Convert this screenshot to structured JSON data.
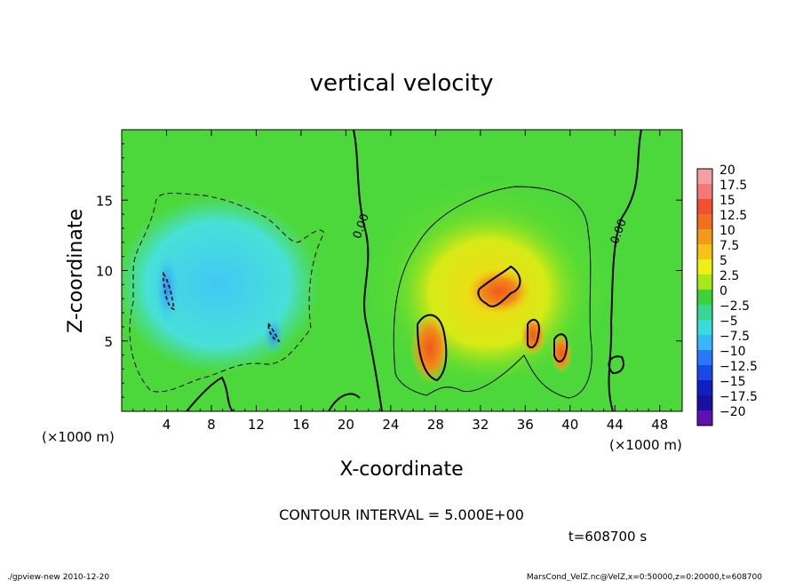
{
  "chart_data": {
    "type": "heatmap",
    "title": "vertical velocity",
    "xlabel": "X-coordinate",
    "ylabel": "Z-coordinate",
    "x_unit_left": "(×1000 m)",
    "x_unit_right": "(×1000 m)",
    "xlim": [
      0,
      50
    ],
    "ylim": [
      0,
      20
    ],
    "x_ticks": [
      4,
      8,
      12,
      16,
      20,
      24,
      28,
      32,
      36,
      40,
      44,
      48
    ],
    "y_ticks": [
      5,
      10,
      15
    ],
    "contour_interval_text": "CONTOUR INTERVAL = 5.000E+00",
    "time_text": "t=608700 s",
    "zero_contour_labels": [
      "0.00",
      "0.00"
    ],
    "colorbar": {
      "labels": [
        "20",
        "17.5",
        "15",
        "12.5",
        "10",
        "7.5",
        "5",
        "2.5",
        "0",
        "−2.5",
        "−5",
        "−7.5",
        "−10",
        "−12.5",
        "−15",
        "−17.5",
        "−20"
      ],
      "colors": [
        "#f4a0a0",
        "#f47878",
        "#f25030",
        "#f07020",
        "#f49a18",
        "#f6c414",
        "#eef012",
        "#a8e81a",
        "#3ed23a",
        "#38d690",
        "#38dcd8",
        "#38b8f8",
        "#2878f8",
        "#1848e8",
        "#1020c0",
        "#1810a0",
        "#6010b0"
      ]
    },
    "features": [
      {
        "kind": "updraft",
        "x": 27.6,
        "z": 4.8,
        "peak": 15
      },
      {
        "kind": "updraft",
        "x": 34.0,
        "z": 8.5,
        "peak": 12.5
      },
      {
        "kind": "updraft",
        "x": 36.5,
        "z": 5.5,
        "peak": 10
      },
      {
        "kind": "updraft",
        "x": 39.5,
        "z": 4.5,
        "peak": 10
      },
      {
        "kind": "downdraft",
        "x": 4.2,
        "z": 8.8,
        "peak": -7.5
      },
      {
        "kind": "downdraft",
        "x": 13.5,
        "z": 5.5,
        "peak": -7.5
      }
    ]
  },
  "footer": {
    "left": "./gpview-new  2010-12-20",
    "right": "MarsCond_VelZ.nc@VelZ,x=0:50000,z=0:20000,t=608700"
  }
}
